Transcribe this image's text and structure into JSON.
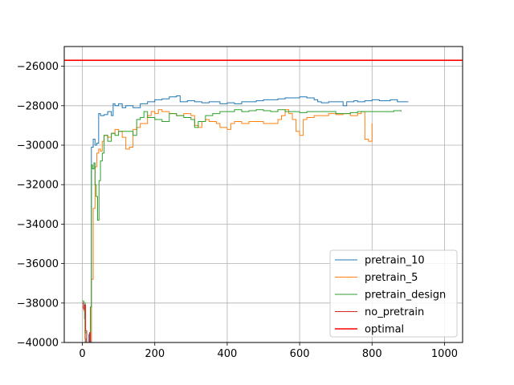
{
  "chart_data": {
    "type": "line",
    "title": "",
    "xlabel": "",
    "ylabel": "",
    "xlim": [
      -50,
      1050
    ],
    "ylim": [
      -40000,
      -25000
    ],
    "xticks": [
      0,
      200,
      400,
      600,
      800,
      1000
    ],
    "yticks": [
      -40000,
      -38000,
      -36000,
      -34000,
      -32000,
      -30000,
      -28000,
      -26000
    ],
    "xtick_labels": [
      "0",
      "200",
      "400",
      "600",
      "800",
      "1000"
    ],
    "ytick_labels": [
      "−40000",
      "−38000",
      "−36000",
      "−34000",
      "−32000",
      "−30000",
      "−28000",
      "−26000"
    ],
    "grid": true,
    "legend_position": "lower-right",
    "series": [
      {
        "name": "pretrain_10",
        "color": "#1f77b4",
        "points": [
          [
            0,
            -38000
          ],
          [
            3,
            -38100
          ],
          [
            6,
            -38800
          ],
          [
            8,
            -40000
          ],
          [
            12,
            -40200
          ],
          [
            18,
            -39600
          ],
          [
            22,
            -40200
          ],
          [
            25,
            -30100
          ],
          [
            30,
            -29700
          ],
          [
            35,
            -30000
          ],
          [
            40,
            -29900
          ],
          [
            45,
            -28400
          ],
          [
            50,
            -28500
          ],
          [
            60,
            -28450
          ],
          [
            70,
            -28300
          ],
          [
            80,
            -28500
          ],
          [
            85,
            -27900
          ],
          [
            90,
            -28000
          ],
          [
            100,
            -27900
          ],
          [
            110,
            -28100
          ],
          [
            120,
            -28000
          ],
          [
            140,
            -28100
          ],
          [
            160,
            -27900
          ],
          [
            180,
            -27800
          ],
          [
            200,
            -27700
          ],
          [
            220,
            -27650
          ],
          [
            240,
            -27550
          ],
          [
            260,
            -27500
          ],
          [
            270,
            -27800
          ],
          [
            290,
            -27750
          ],
          [
            310,
            -27800
          ],
          [
            330,
            -27850
          ],
          [
            350,
            -27800
          ],
          [
            380,
            -27900
          ],
          [
            400,
            -27850
          ],
          [
            420,
            -27900
          ],
          [
            440,
            -27800
          ],
          [
            460,
            -27800
          ],
          [
            480,
            -27750
          ],
          [
            500,
            -27700
          ],
          [
            520,
            -27700
          ],
          [
            540,
            -27650
          ],
          [
            560,
            -27600
          ],
          [
            580,
            -27600
          ],
          [
            600,
            -27550
          ],
          [
            620,
            -27600
          ],
          [
            640,
            -27700
          ],
          [
            650,
            -27800
          ],
          [
            660,
            -27850
          ],
          [
            680,
            -27800
          ],
          [
            700,
            -27800
          ],
          [
            720,
            -28000
          ],
          [
            730,
            -27800
          ],
          [
            750,
            -27750
          ],
          [
            760,
            -27800
          ],
          [
            780,
            -27750
          ],
          [
            800,
            -27700
          ],
          [
            820,
            -27750
          ],
          [
            850,
            -27700
          ],
          [
            870,
            -27800
          ],
          [
            900,
            -27800
          ]
        ]
      },
      {
        "name": "pretrain_5",
        "color": "#ff7f0e",
        "points": [
          [
            0,
            -38200
          ],
          [
            4,
            -38400
          ],
          [
            7,
            -39800
          ],
          [
            10,
            -40300
          ],
          [
            15,
            -40200
          ],
          [
            20,
            -39900
          ],
          [
            25,
            -36800
          ],
          [
            30,
            -33200
          ],
          [
            35,
            -31100
          ],
          [
            40,
            -30400
          ],
          [
            45,
            -30200
          ],
          [
            50,
            -30300
          ],
          [
            55,
            -29800
          ],
          [
            60,
            -29500
          ],
          [
            70,
            -29600
          ],
          [
            80,
            -29400
          ],
          [
            90,
            -29200
          ],
          [
            100,
            -29300
          ],
          [
            110,
            -29600
          ],
          [
            120,
            -30200
          ],
          [
            130,
            -30100
          ],
          [
            140,
            -29200
          ],
          [
            150,
            -29100
          ],
          [
            160,
            -28900
          ],
          [
            180,
            -28500
          ],
          [
            190,
            -28300
          ],
          [
            200,
            -28400
          ],
          [
            210,
            -28200
          ],
          [
            220,
            -28300
          ],
          [
            240,
            -28400
          ],
          [
            260,
            -28500
          ],
          [
            280,
            -28400
          ],
          [
            300,
            -28500
          ],
          [
            310,
            -29000
          ],
          [
            320,
            -29100
          ],
          [
            330,
            -28800
          ],
          [
            340,
            -28700
          ],
          [
            350,
            -28800
          ],
          [
            370,
            -28900
          ],
          [
            380,
            -29100
          ],
          [
            400,
            -29200
          ],
          [
            410,
            -28900
          ],
          [
            420,
            -28800
          ],
          [
            440,
            -28900
          ],
          [
            460,
            -28800
          ],
          [
            480,
            -28800
          ],
          [
            500,
            -28900
          ],
          [
            520,
            -28900
          ],
          [
            540,
            -28700
          ],
          [
            550,
            -28500
          ],
          [
            560,
            -28200
          ],
          [
            570,
            -28400
          ],
          [
            580,
            -28700
          ],
          [
            590,
            -29300
          ],
          [
            600,
            -29500
          ],
          [
            610,
            -28700
          ],
          [
            620,
            -28600
          ],
          [
            640,
            -28500
          ],
          [
            660,
            -28500
          ],
          [
            680,
            -28400
          ],
          [
            700,
            -28450
          ],
          [
            720,
            -28400
          ],
          [
            740,
            -28500
          ],
          [
            760,
            -28400
          ],
          [
            770,
            -28300
          ],
          [
            780,
            -29700
          ],
          [
            790,
            -29800
          ],
          [
            800,
            -28900
          ]
        ]
      },
      {
        "name": "pretrain_design",
        "color": "#2ca02c",
        "points": [
          [
            0,
            -37900
          ],
          [
            4,
            -38000
          ],
          [
            8,
            -39500
          ],
          [
            12,
            -40100
          ],
          [
            18,
            -40200
          ],
          [
            22,
            -38200
          ],
          [
            25,
            -31000
          ],
          [
            28,
            -31200
          ],
          [
            32,
            -30900
          ],
          [
            35,
            -32000
          ],
          [
            38,
            -32600
          ],
          [
            42,
            -33800
          ],
          [
            46,
            -31800
          ],
          [
            50,
            -30800
          ],
          [
            55,
            -30400
          ],
          [
            60,
            -29500
          ],
          [
            70,
            -29800
          ],
          [
            80,
            -29400
          ],
          [
            90,
            -29500
          ],
          [
            100,
            -29300
          ],
          [
            120,
            -29300
          ],
          [
            140,
            -29500
          ],
          [
            150,
            -28700
          ],
          [
            160,
            -28600
          ],
          [
            170,
            -28300
          ],
          [
            180,
            -28600
          ],
          [
            200,
            -28700
          ],
          [
            220,
            -28800
          ],
          [
            240,
            -28400
          ],
          [
            260,
            -28500
          ],
          [
            280,
            -28600
          ],
          [
            300,
            -28700
          ],
          [
            310,
            -29100
          ],
          [
            320,
            -28800
          ],
          [
            340,
            -28500
          ],
          [
            360,
            -28400
          ],
          [
            380,
            -28300
          ],
          [
            400,
            -28300
          ],
          [
            420,
            -28200
          ],
          [
            440,
            -28300
          ],
          [
            460,
            -28250
          ],
          [
            480,
            -28200
          ],
          [
            500,
            -28250
          ],
          [
            520,
            -28300
          ],
          [
            540,
            -28200
          ],
          [
            560,
            -28300
          ],
          [
            580,
            -28300
          ],
          [
            600,
            -28350
          ],
          [
            620,
            -28300
          ],
          [
            650,
            -28300
          ],
          [
            680,
            -28300
          ],
          [
            700,
            -28400
          ],
          [
            720,
            -28400
          ],
          [
            740,
            -28350
          ],
          [
            760,
            -28300
          ],
          [
            780,
            -28300
          ],
          [
            800,
            -28300
          ],
          [
            830,
            -28300
          ],
          [
            860,
            -28250
          ],
          [
            880,
            -28300
          ]
        ]
      },
      {
        "name": "no_pretrain",
        "color": "#d62728",
        "points": [
          [
            0,
            -38000
          ],
          [
            3,
            -38300
          ],
          [
            6,
            -38100
          ],
          [
            9,
            -39400
          ],
          [
            12,
            -40000
          ],
          [
            16,
            -40300
          ],
          [
            20,
            -39500
          ],
          [
            22,
            -40200
          ],
          [
            24,
            -40300
          ]
        ]
      },
      {
        "name": "optimal",
        "color": "#ff0000",
        "points": [
          [
            -50,
            -25700
          ],
          [
            1050,
            -25700
          ]
        ]
      }
    ]
  }
}
